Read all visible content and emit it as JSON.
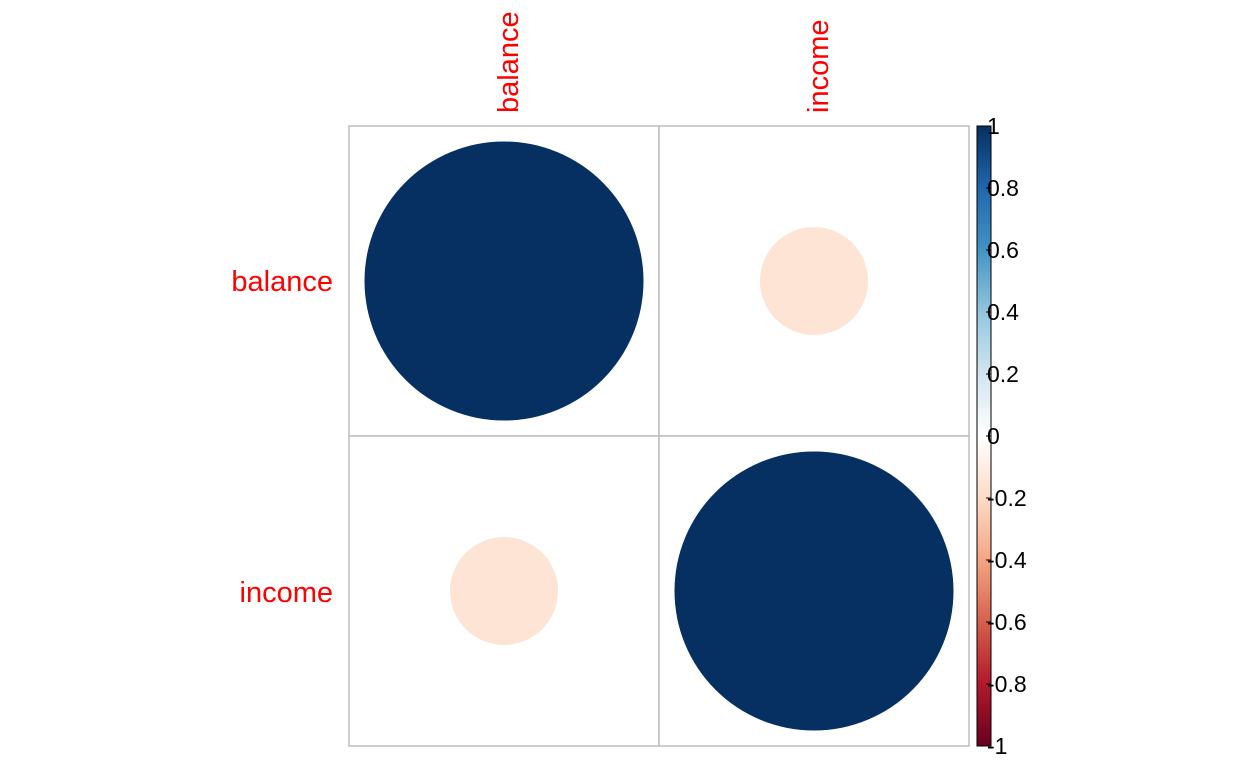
{
  "chart_data": {
    "type": "heatmap",
    "method": "circle",
    "variables": [
      "balance",
      "income"
    ],
    "matrix": [
      [
        1.0,
        -0.15
      ],
      [
        -0.15,
        1.0
      ]
    ],
    "label_color": "#FF0000",
    "grid_color": "#BEBEBE",
    "colorbar": {
      "range": [
        -1,
        1
      ],
      "ticks": [
        "1",
        "0.8",
        "0.6",
        "0.4",
        "0.2",
        "0",
        "-0.2",
        "-0.4",
        "-0.6",
        "-0.8",
        "-1"
      ],
      "colors": [
        "#67001F",
        "#B2182B",
        "#D6604D",
        "#F4A582",
        "#FDDBC7",
        "#FFFFFF",
        "#D1E5F0",
        "#92C5DE",
        "#4393C3",
        "#2166AC",
        "#053061"
      ],
      "placement": "right"
    },
    "grid": true
  }
}
